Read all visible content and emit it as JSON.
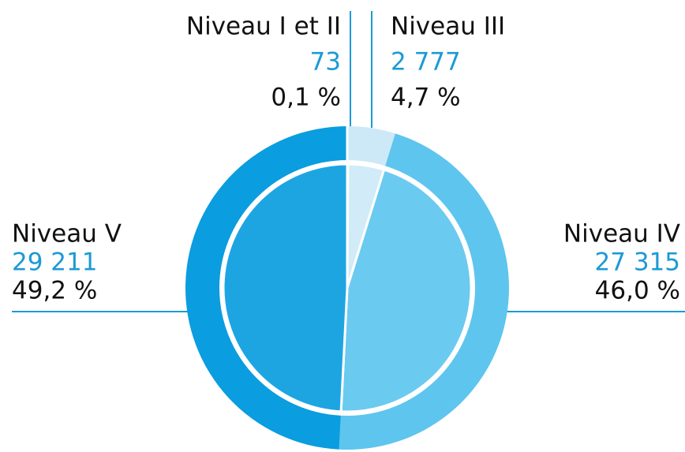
{
  "chart_data": {
    "type": "pie",
    "categories": [
      "Niveau I et II",
      "Niveau III",
      "Niveau IV",
      "Niveau V"
    ],
    "values": [
      73,
      2777,
      27315,
      29211
    ],
    "value_labels": [
      "73",
      "2 777",
      "27 315",
      "29 211"
    ],
    "percentages": [
      0.1,
      4.7,
      46.0,
      49.2
    ],
    "percentage_labels": [
      "0,1 %",
      "4,7 %",
      "46,0 %",
      "49,2 %"
    ],
    "colors": [
      "#e3f3fb",
      "#cde9f7",
      "#5ec5ee",
      "#0a9ddf"
    ]
  }
}
